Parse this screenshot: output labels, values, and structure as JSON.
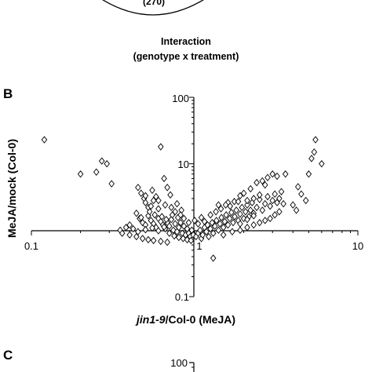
{
  "venn_fragment": {
    "circle_count_label": "(270)",
    "caption_line1": "Interaction",
    "caption_line2": "(genotype x treatment)"
  },
  "panel_labels": {
    "b": "B",
    "c": "C"
  },
  "panel_c": {
    "top_tick_label": "100"
  },
  "chart_data": {
    "type": "scatter",
    "marker": "diamond",
    "xscale": "log",
    "yscale": "log",
    "xlim": [
      0.1,
      10
    ],
    "ylim": [
      0.1,
      100
    ],
    "xlabel_italic": "jin1-9",
    "xlabel_rest": "/Col-0 (MeJA)",
    "ylabel": "MeJA/mock (Col-0)",
    "x_tick_labels": [
      "0.1",
      "1",
      "10"
    ],
    "y_tick_labels": [
      "100",
      "10",
      "0.1"
    ],
    "points": [
      [
        0.12,
        23
      ],
      [
        0.2,
        7
      ],
      [
        0.25,
        7.5
      ],
      [
        0.27,
        11
      ],
      [
        0.29,
        10
      ],
      [
        0.31,
        5
      ],
      [
        0.45,
        4.4
      ],
      [
        0.47,
        3.6
      ],
      [
        0.49,
        3
      ],
      [
        0.5,
        2.6
      ],
      [
        0.52,
        2.2
      ],
      [
        0.55,
        4
      ],
      [
        0.58,
        3.2
      ],
      [
        0.6,
        2.8
      ],
      [
        0.62,
        18
      ],
      [
        0.65,
        6
      ],
      [
        0.68,
        4.4
      ],
      [
        0.71,
        3.4
      ],
      [
        0.78,
        2.5
      ],
      [
        0.83,
        2
      ],
      [
        0.44,
        1.8
      ],
      [
        0.46,
        1.5
      ],
      [
        0.48,
        1.3
      ],
      [
        0.5,
        1.2
      ],
      [
        0.52,
        1.65
      ],
      [
        0.54,
        1.4
      ],
      [
        0.56,
        1.25
      ],
      [
        0.58,
        1.1
      ],
      [
        0.6,
        1.5
      ],
      [
        0.62,
        1.35
      ],
      [
        0.64,
        1.2
      ],
      [
        0.66,
        1.05
      ],
      [
        0.68,
        1.3
      ],
      [
        0.7,
        1.15
      ],
      [
        0.72,
        1.45
      ],
      [
        0.74,
        1.0
      ],
      [
        0.76,
        1.25
      ],
      [
        0.78,
        0.95
      ],
      [
        0.8,
        1.1
      ],
      [
        0.82,
        1.3
      ],
      [
        0.84,
        0.9
      ],
      [
        0.86,
        1.15
      ],
      [
        0.88,
        0.85
      ],
      [
        0.9,
        1.05
      ],
      [
        0.92,
        0.9
      ],
      [
        0.94,
        0.8
      ],
      [
        0.96,
        1.0
      ],
      [
        0.98,
        0.85
      ],
      [
        0.5,
        1.02
      ],
      [
        0.55,
        1.08
      ],
      [
        0.6,
        0.98
      ],
      [
        0.65,
        1.12
      ],
      [
        0.7,
        0.9
      ],
      [
        0.75,
        0.82
      ],
      [
        0.8,
        0.78
      ],
      [
        0.85,
        0.75
      ],
      [
        0.9,
        0.72
      ],
      [
        0.95,
        0.7
      ],
      [
        0.4,
        1.2
      ],
      [
        0.42,
        1.05
      ],
      [
        0.45,
        0.95
      ],
      [
        0.38,
        1.1
      ],
      [
        0.47,
        1.55
      ],
      [
        0.53,
        1.9
      ],
      [
        0.57,
        1.7
      ],
      [
        0.63,
        1.6
      ],
      [
        0.67,
        1.45
      ],
      [
        0.73,
        1.7
      ],
      [
        0.79,
        1.55
      ],
      [
        1.02,
        0.8
      ],
      [
        1.05,
        0.9
      ],
      [
        1.08,
        1.0
      ],
      [
        1.1,
        0.75
      ],
      [
        1.12,
        0.85
      ],
      [
        1.15,
        1.1
      ],
      [
        1.18,
        0.95
      ],
      [
        1.2,
        1.2
      ],
      [
        1.22,
        0.8
      ],
      [
        1.25,
        1.05
      ],
      [
        1.28,
        1.3
      ],
      [
        1.3,
        0.9
      ],
      [
        1.33,
        1.15
      ],
      [
        1.36,
        1.4
      ],
      [
        1.4,
        1.0
      ],
      [
        1.43,
        1.25
      ],
      [
        1.46,
        1.55
      ],
      [
        1.5,
        1.1
      ],
      [
        1.53,
        1.35
      ],
      [
        1.56,
        1.7
      ],
      [
        1.6,
        1.2
      ],
      [
        1.64,
        1.5
      ],
      [
        1.68,
        1.85
      ],
      [
        1.72,
        1.3
      ],
      [
        1.76,
        1.6
      ],
      [
        1.8,
        2.0
      ],
      [
        1.85,
        1.4
      ],
      [
        1.9,
        1.75
      ],
      [
        1.95,
        2.2
      ],
      [
        2.0,
        1.5
      ],
      [
        2.05,
        1.9
      ],
      [
        2.1,
        2.4
      ],
      [
        2.15,
        1.6
      ],
      [
        2.2,
        2.0
      ],
      [
        2.25,
        2.6
      ],
      [
        2.3,
        1.8
      ],
      [
        2.4,
        2.2
      ],
      [
        2.5,
        2.9
      ],
      [
        2.6,
        2.0
      ],
      [
        2.7,
        2.5
      ],
      [
        2.8,
        3.2
      ],
      [
        2.9,
        2.3
      ],
      [
        3.0,
        2.8
      ],
      [
        3.1,
        3.5
      ],
      [
        3.2,
        2.6
      ],
      [
        3.3,
        3.0
      ],
      [
        3.4,
        3.8
      ],
      [
        3.5,
        2.5
      ],
      [
        2.0,
        3.6
      ],
      [
        2.2,
        4.2
      ],
      [
        2.4,
        5.2
      ],
      [
        2.6,
        5.5
      ],
      [
        2.8,
        6.2
      ],
      [
        3.0,
        7.0
      ],
      [
        3.2,
        6.5
      ],
      [
        2.7,
        4.8
      ],
      [
        2.5,
        3.4
      ],
      [
        2.3,
        3.0
      ],
      [
        3.6,
        7.0
      ],
      [
        4.0,
        2.4
      ],
      [
        4.2,
        2.0
      ],
      [
        4.3,
        4.5
      ],
      [
        4.5,
        3.5
      ],
      [
        4.8,
        2.8
      ],
      [
        5.0,
        7.0
      ],
      [
        5.2,
        12
      ],
      [
        5.4,
        15
      ],
      [
        5.5,
        23
      ],
      [
        6.0,
        10
      ],
      [
        1.6,
        2.6
      ],
      [
        1.4,
        2.4
      ],
      [
        1.3,
        0.38
      ],
      [
        1.0,
        1.4
      ],
      [
        1.05,
        1.25
      ],
      [
        1.1,
        1.55
      ],
      [
        1.15,
        1.35
      ],
      [
        1.25,
        1.7
      ],
      [
        1.35,
        1.9
      ],
      [
        1.45,
        2.1
      ],
      [
        1.55,
        2.4
      ],
      [
        1.65,
        2.3
      ],
      [
        1.75,
        2.7
      ],
      [
        0.35,
        1.0
      ],
      [
        0.36,
        0.9
      ],
      [
        0.4,
        0.85
      ],
      [
        0.44,
        0.8
      ],
      [
        0.48,
        0.75
      ],
      [
        0.52,
        0.72
      ],
      [
        0.56,
        0.7
      ],
      [
        0.62,
        0.68
      ],
      [
        0.68,
        0.66
      ],
      [
        1.5,
        0.85
      ],
      [
        1.7,
        0.95
      ],
      [
        1.9,
        1.0
      ],
      [
        2.1,
        1.1
      ],
      [
        2.3,
        1.2
      ],
      [
        2.5,
        1.3
      ],
      [
        2.7,
        1.4
      ],
      [
        2.9,
        1.5
      ],
      [
        3.1,
        1.7
      ],
      [
        3.3,
        1.9
      ],
      [
        1.9,
        1.25
      ],
      [
        2.1,
        1.45
      ],
      [
        2.3,
        1.65
      ],
      [
        0.6,
        2.1
      ],
      [
        0.66,
        2.4
      ],
      [
        0.72,
        2.2
      ],
      [
        0.76,
        1.9
      ],
      [
        0.82,
        1.7
      ],
      [
        0.86,
        1.5
      ],
      [
        0.92,
        1.3
      ],
      [
        0.56,
        2.8
      ],
      [
        0.5,
        3.3
      ],
      [
        0.54,
        2.3
      ],
      [
        1.9,
        3.3
      ],
      [
        2.1,
        2.8
      ],
      [
        1.85,
        2.7
      ]
    ]
  }
}
